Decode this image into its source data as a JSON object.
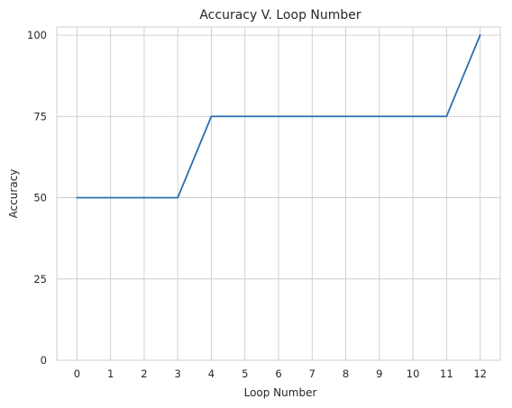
{
  "chart_data": {
    "type": "line",
    "title": "Accuracy V. Loop Number",
    "xlabel": "Loop Number",
    "ylabel": "Accuracy",
    "x": [
      0,
      1,
      2,
      3,
      4,
      5,
      6,
      7,
      8,
      9,
      10,
      11,
      12
    ],
    "series": [
      {
        "values": [
          50,
          50,
          50,
          50,
          75,
          75,
          75,
          75,
          75,
          75,
          75,
          75,
          100
        ],
        "color": "#2a6fb0"
      }
    ],
    "xlim": [
      -0.6,
      12.6
    ],
    "ylim": [
      0,
      102.5
    ],
    "xticks": [
      "0",
      "1",
      "2",
      "3",
      "4",
      "5",
      "6",
      "7",
      "8",
      "9",
      "10",
      "11",
      "12"
    ],
    "yticks": [
      0,
      25,
      50,
      75,
      100
    ],
    "grid": true,
    "legend": "none"
  }
}
